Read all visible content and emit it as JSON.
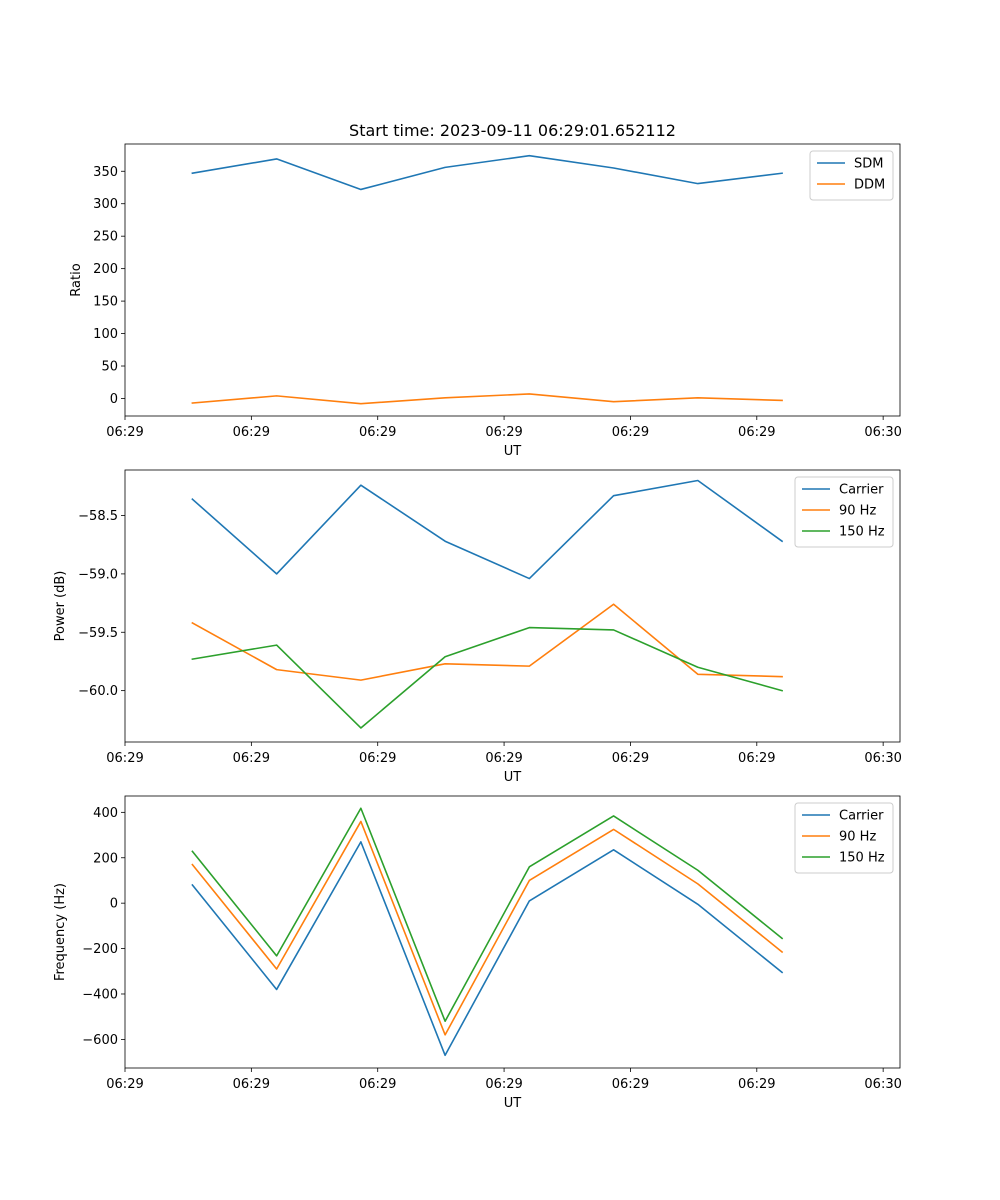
{
  "chart_data": [
    {
      "type": "line",
      "title": "Start time: 2023-09-11 06:29:01.652112",
      "xlabel": "UT",
      "ylabel": "Ratio",
      "x": [
        1,
        2,
        3,
        4,
        5,
        6,
        7,
        8
      ],
      "xlim": [
        0.2,
        9.4
      ],
      "x_ticks": [
        0.2,
        1.7,
        3.2,
        4.7,
        6.2,
        7.7,
        9.2
      ],
      "x_tick_labels": [
        "06:29",
        "06:29",
        "06:29",
        "06:29",
        "06:29",
        "06:29",
        "06:30"
      ],
      "ylim": [
        -27,
        392
      ],
      "y_ticks": [
        0,
        50,
        100,
        150,
        200,
        250,
        300,
        350
      ],
      "y_tick_labels": [
        "0",
        "50",
        "100",
        "150",
        "200",
        "250",
        "300",
        "350"
      ],
      "legend_position": "top-right",
      "series": [
        {
          "name": "SDM",
          "color": "#1f77b4",
          "values": [
            347,
            369,
            322,
            356,
            374,
            355,
            331,
            347
          ]
        },
        {
          "name": "DDM",
          "color": "#ff7f0e",
          "values": [
            -7,
            4,
            -8,
            1,
            7,
            -5,
            1,
            -3
          ]
        }
      ]
    },
    {
      "type": "line",
      "title": "",
      "xlabel": "UT",
      "ylabel": "Power (dB)",
      "x": [
        1,
        2,
        3,
        4,
        5,
        6,
        7,
        8
      ],
      "xlim": [
        0.2,
        9.4
      ],
      "x_ticks": [
        0.2,
        1.7,
        3.2,
        4.7,
        6.2,
        7.7,
        9.2
      ],
      "x_tick_labels": [
        "06:29",
        "06:29",
        "06:29",
        "06:29",
        "06:29",
        "06:29",
        "06:30"
      ],
      "ylim": [
        -60.44,
        -58.11
      ],
      "y_ticks": [
        -60.0,
        -59.5,
        -59.0,
        -58.5
      ],
      "y_tick_labels": [
        "−60.0",
        "−59.5",
        "−59.0",
        "−58.5"
      ],
      "legend_position": "top-right",
      "series": [
        {
          "name": "Carrier",
          "color": "#1f77b4",
          "values": [
            -58.36,
            -59.0,
            -58.24,
            -58.72,
            -59.04,
            -58.33,
            -58.2,
            -58.72
          ]
        },
        {
          "name": "90 Hz",
          "color": "#ff7f0e",
          "values": [
            -59.42,
            -59.82,
            -59.91,
            -59.77,
            -59.79,
            -59.26,
            -59.86,
            -59.88
          ]
        },
        {
          "name": "150 Hz",
          "color": "#2ca02c",
          "values": [
            -59.73,
            -59.61,
            -60.32,
            -59.71,
            -59.46,
            -59.48,
            -59.8,
            -60.0
          ]
        }
      ]
    },
    {
      "type": "line",
      "title": "",
      "xlabel": "UT",
      "ylabel": "Frequency (Hz)",
      "x": [
        1,
        2,
        3,
        4,
        5,
        6,
        7,
        8
      ],
      "xlim": [
        0.2,
        9.4
      ],
      "x_ticks": [
        0.2,
        1.7,
        3.2,
        4.7,
        6.2,
        7.7,
        9.2
      ],
      "x_tick_labels": [
        "06:29",
        "06:29",
        "06:29",
        "06:29",
        "06:29",
        "06:29",
        "06:30"
      ],
      "ylim": [
        -726,
        472
      ],
      "y_ticks": [
        -600,
        -400,
        -200,
        0,
        200,
        400
      ],
      "y_tick_labels": [
        "−600",
        "−400",
        "−200",
        "0",
        "200",
        "400"
      ],
      "legend_position": "top-right",
      "series": [
        {
          "name": "Carrier",
          "color": "#1f77b4",
          "values": [
            80,
            -380,
            270,
            -670,
            10,
            235,
            -5,
            -305
          ]
        },
        {
          "name": "90 Hz",
          "color": "#ff7f0e",
          "values": [
            170,
            -290,
            360,
            -580,
            100,
            325,
            85,
            -215
          ]
        },
        {
          "name": "150 Hz",
          "color": "#2ca02c",
          "values": [
            228,
            -232,
            418,
            -520,
            160,
            384,
            145,
            -155
          ]
        }
      ]
    }
  ]
}
